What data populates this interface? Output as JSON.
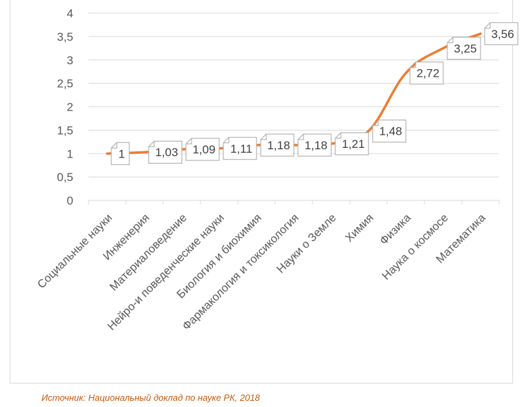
{
  "chart_data": {
    "type": "line",
    "title": "",
    "xlabel": "",
    "ylabel": "",
    "ylim": [
      0,
      4
    ],
    "yticks": [
      "0",
      "0,5",
      "1",
      "1,5",
      "2",
      "2,5",
      "3",
      "3,5",
      "4"
    ],
    "categories": [
      "Социальные науки",
      "Инженерия",
      "Материаловедение",
      "Нейро-и поведенческие науки",
      "Биология и биохимия",
      "Фармакология и токсикология",
      "Науки о Земле",
      "Химия",
      "Физика",
      "Наука о космосе",
      "Математика"
    ],
    "values": [
      1,
      1.03,
      1.09,
      1.11,
      1.18,
      1.18,
      1.21,
      1.48,
      2.72,
      3.25,
      3.56
    ],
    "data_labels": [
      "1",
      "1,03",
      "1,09",
      "1,11",
      "1,18",
      "1,18",
      "1,21",
      "1,48",
      "2,72",
      "3,25",
      "3,56"
    ],
    "grid": true,
    "line_color": "#ed7d31",
    "grid_color": "#d9d9d9",
    "text_color": "#595959"
  },
  "source_note": "Источник: Национальный доклад по науке РК, 2018",
  "colors": {
    "source_note": "#c55a11"
  }
}
